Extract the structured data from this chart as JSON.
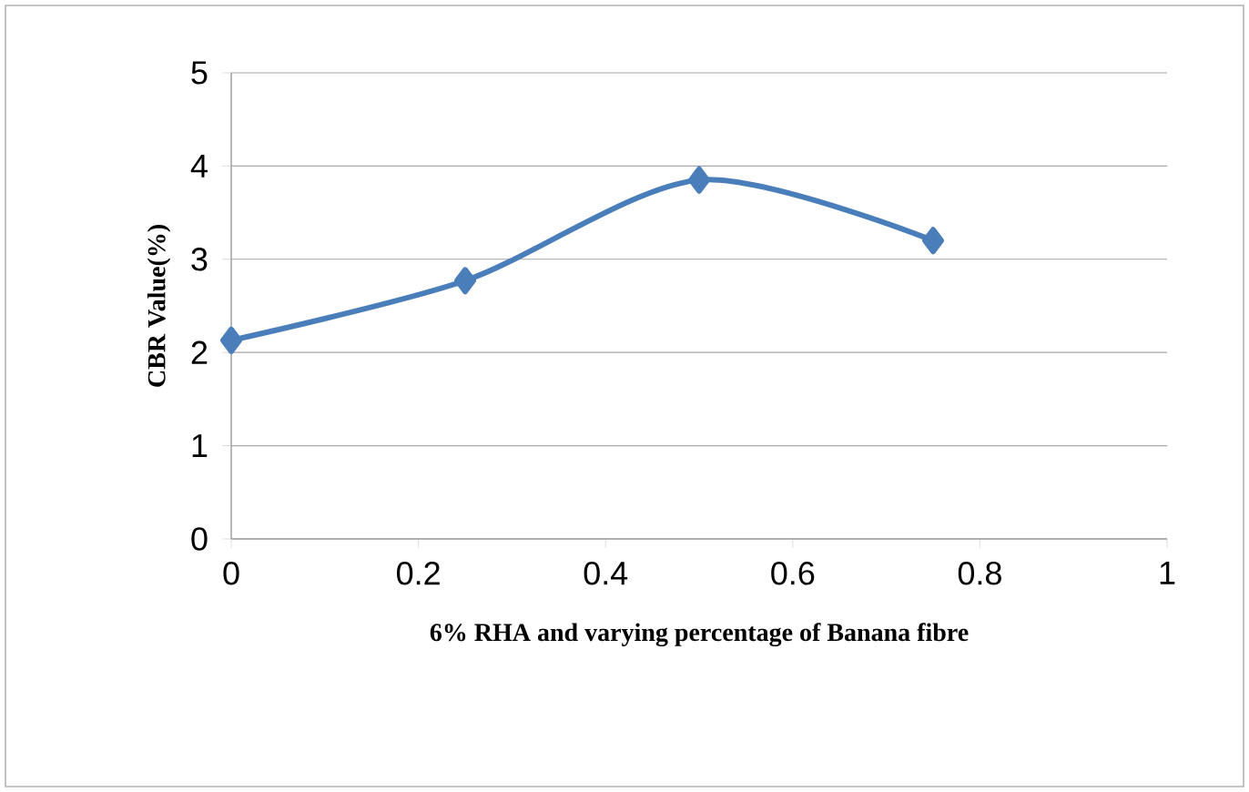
{
  "chart_data": {
    "type": "line",
    "xlabel": "6% RHA and varying percentage of Banana fibre",
    "ylabel": "CBR Value(%)",
    "x": [
      0,
      0.25,
      0.5,
      0.75
    ],
    "values": [
      2.13,
      2.77,
      3.85,
      3.2
    ],
    "color": "#4a7ebb",
    "xlim": [
      0,
      1
    ],
    "ylim": [
      0,
      5
    ],
    "xticks": [
      0,
      0.2,
      0.4,
      0.6,
      0.8,
      1
    ],
    "yticks": [
      0,
      1,
      2,
      3,
      4,
      5
    ],
    "grid": "y",
    "marker": "diamond",
    "line_style": "solid"
  }
}
